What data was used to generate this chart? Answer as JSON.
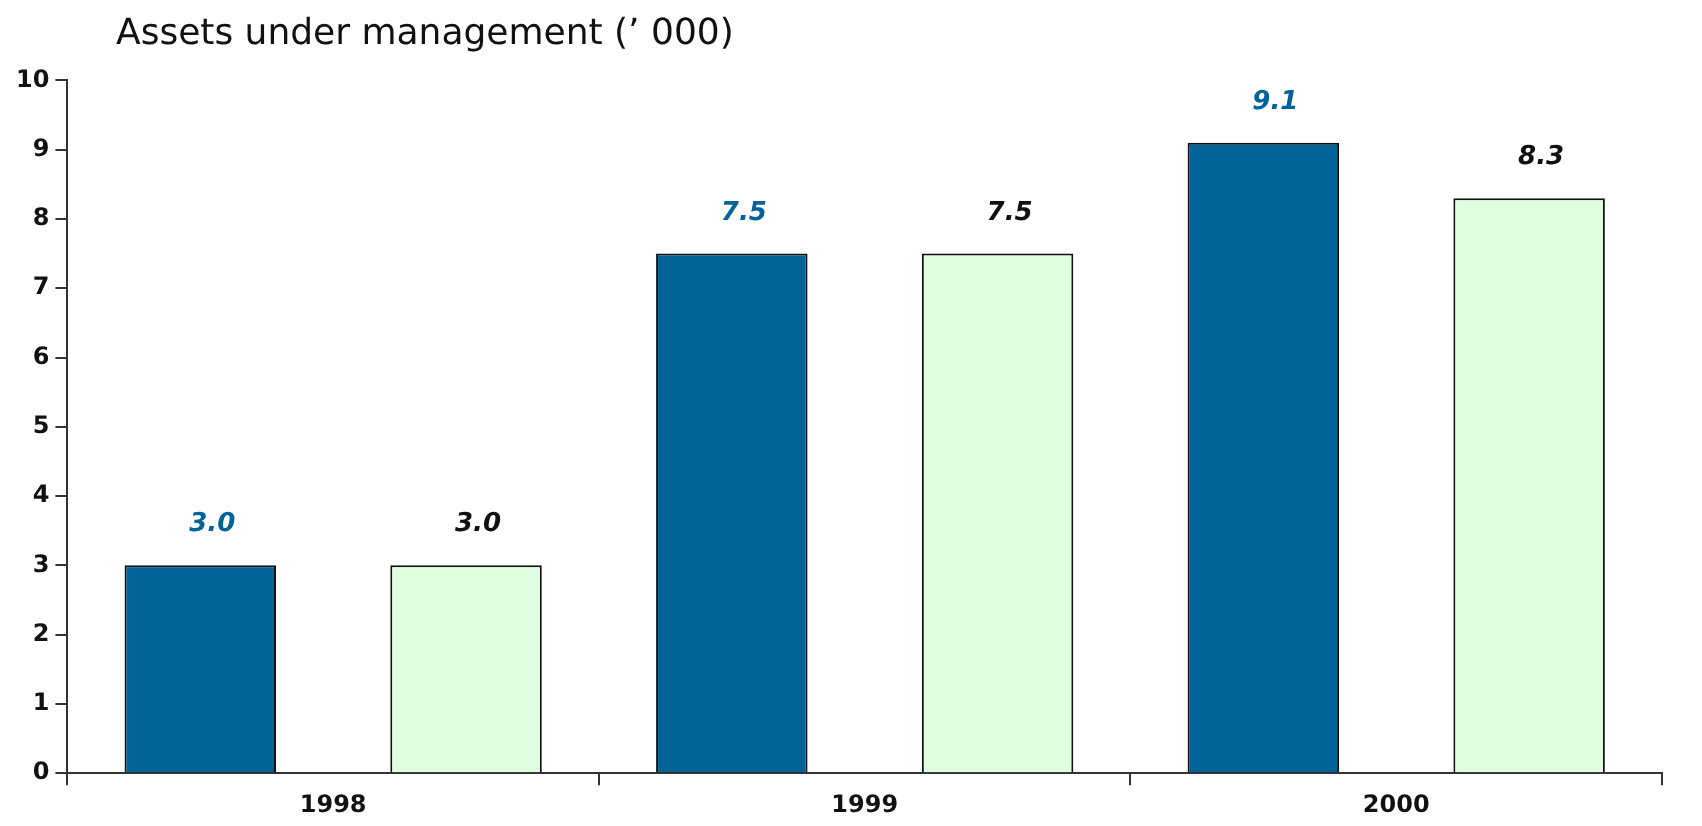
{
  "chart_data": {
    "type": "bar",
    "title": "Assets under management (’ 000)",
    "categories": [
      "1998",
      "1999",
      "2000"
    ],
    "series": [
      {
        "color": "#006499",
        "values": [
          3.0,
          7.5,
          9.1
        ],
        "value_labels": [
          "3.0",
          "7.5",
          "9.1"
        ]
      },
      {
        "color": "#e0ffe0",
        "values": [
          3.0,
          7.5,
          8.3
        ],
        "value_labels": [
          "3.0",
          "7.5",
          "8.3"
        ]
      }
    ],
    "ylim": [
      0,
      10
    ],
    "yticks": [
      0,
      1,
      2,
      3,
      4,
      5,
      6,
      7,
      8,
      9,
      10
    ],
    "grid": false,
    "legend": false
  }
}
